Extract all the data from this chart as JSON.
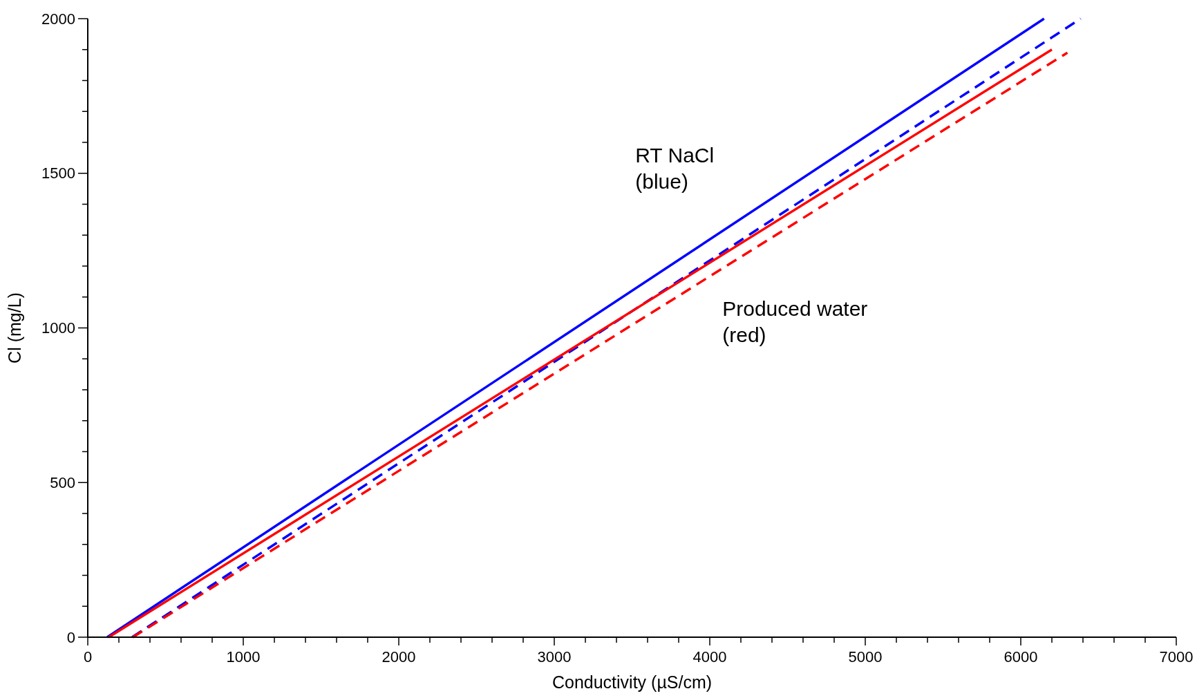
{
  "chart_data": {
    "type": "line",
    "xlabel": "Conductivity (µS/cm)",
    "ylabel": "Cl (mg/L)",
    "xlim": [
      0,
      7000
    ],
    "ylim": [
      0,
      2000
    ],
    "xticks": [
      0,
      {
        "value": 200,
        "label": null
      },
      {
        "value": 400,
        "label": null
      },
      {
        "value": 600,
        "label": null
      },
      {
        "value": 800,
        "label": null
      },
      1000,
      {
        "value": 1200,
        "label": null
      },
      {
        "value": 1400,
        "label": null
      },
      {
        "value": 1600,
        "label": null
      },
      {
        "value": 1800,
        "label": null
      },
      2000,
      {
        "value": 2200,
        "label": null
      },
      {
        "value": 2400,
        "label": null
      },
      {
        "value": 2600,
        "label": null
      },
      {
        "value": 2800,
        "label": null
      },
      3000,
      {
        "value": 3200,
        "label": null
      },
      {
        "value": 3400,
        "label": null
      },
      {
        "value": 3600,
        "label": null
      },
      {
        "value": 3800,
        "label": null
      },
      4000,
      {
        "value": 4200,
        "label": null
      },
      {
        "value": 4400,
        "label": null
      },
      {
        "value": 4600,
        "label": null
      },
      {
        "value": 4800,
        "label": null
      },
      5000,
      {
        "value": 5200,
        "label": null
      },
      {
        "value": 5400,
        "label": null
      },
      {
        "value": 5600,
        "label": null
      },
      {
        "value": 5800,
        "label": null
      },
      6000,
      {
        "value": 6200,
        "label": null
      },
      {
        "value": 6400,
        "label": null
      },
      {
        "value": 6600,
        "label": null
      },
      {
        "value": 6800,
        "label": null
      },
      7000
    ],
    "yticks": [
      0,
      {
        "value": 100,
        "label": null
      },
      {
        "value": 200,
        "label": null
      },
      {
        "value": 300,
        "label": null
      },
      {
        "value": 400,
        "label": null
      },
      500,
      {
        "value": 600,
        "label": null
      },
      {
        "value": 700,
        "label": null
      },
      {
        "value": 800,
        "label": null
      },
      {
        "value": 900,
        "label": null
      },
      1000,
      {
        "value": 1100,
        "label": null
      },
      {
        "value": 1200,
        "label": null
      },
      {
        "value": 1300,
        "label": null
      },
      {
        "value": 1400,
        "label": null
      },
      1500,
      {
        "value": 1600,
        "label": null
      },
      {
        "value": 1700,
        "label": null
      },
      {
        "value": 1800,
        "label": null
      },
      {
        "value": 1900,
        "label": null
      },
      2000
    ],
    "grid": false,
    "marker": "none",
    "series": [
      {
        "color": "#0000ff",
        "x": [
          125,
          6150
        ],
        "values": [
          0,
          2000
        ],
        "line_style": "solid"
      },
      {
        "color": "#0000ff",
        "x": [
          285,
          6385
        ],
        "values": [
          0,
          2000
        ],
        "line_style": "dashed"
      },
      {
        "color": "#ff0000",
        "x": [
          135,
          6200
        ],
        "values": [
          0,
          1900
        ],
        "line_style": "solid"
      },
      {
        "color": "#ff0000",
        "x": [
          290,
          6300
        ],
        "values": [
          0,
          1890
        ],
        "line_style": "dashed"
      }
    ],
    "annotations": [
      "RT NaCl\n(blue)",
      "Produced water\n(red)"
    ]
  }
}
